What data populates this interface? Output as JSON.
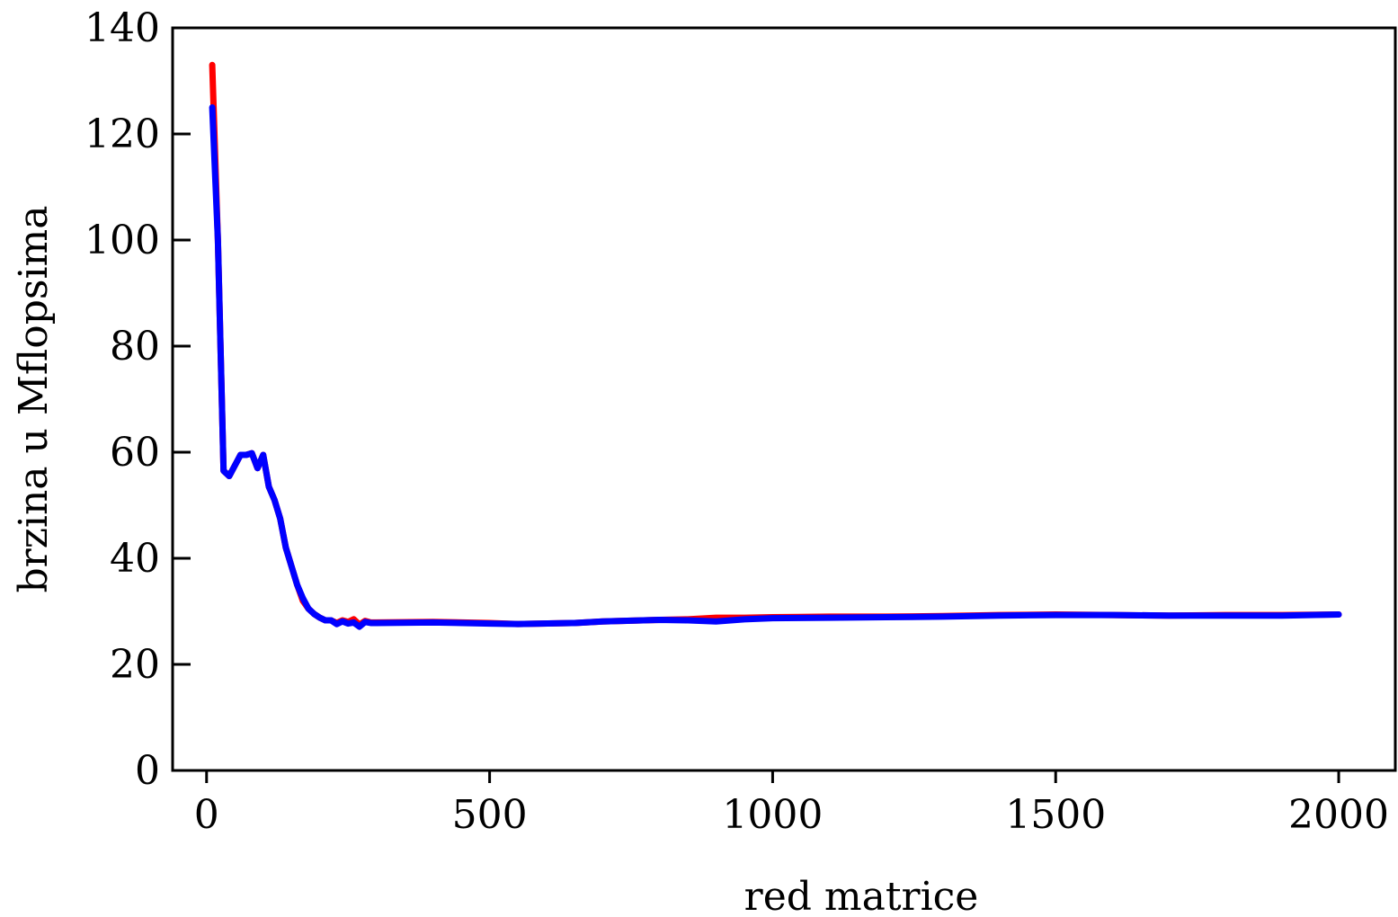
{
  "chart_data": {
    "type": "line",
    "title": "",
    "xlabel": "red matrice",
    "ylabel": "brzina u Mflopsima",
    "xlim": [
      -60,
      2100
    ],
    "ylim": [
      0,
      140
    ],
    "xticks": [
      0,
      500,
      1000,
      1500,
      2000
    ],
    "yticks": [
      0,
      20,
      40,
      60,
      80,
      100,
      120,
      140
    ],
    "xtick_labels": [
      "0",
      "500",
      "1000",
      "1500",
      "2000"
    ],
    "ytick_labels": [
      "0",
      "20",
      "40",
      "60",
      "80",
      "100",
      "120",
      "140"
    ],
    "grid": false,
    "legend": "none",
    "series": [
      {
        "color": "#ff0000",
        "x": [
          10,
          20,
          30,
          40,
          50,
          60,
          70,
          80,
          90,
          100,
          110,
          120,
          130,
          140,
          150,
          160,
          170,
          180,
          190,
          200,
          210,
          220,
          230,
          240,
          250,
          260,
          270,
          280,
          290,
          300,
          400,
          500,
          550,
          650,
          700,
          800,
          850,
          900,
          950,
          1000,
          1100,
          1200,
          1300,
          1400,
          1500,
          1600,
          1700,
          1800,
          1900,
          2000
        ],
        "y": [
          133,
          100,
          56.5,
          55.5,
          57.5,
          59.5,
          59.5,
          59.8,
          57.0,
          59.5,
          53.5,
          51.0,
          47.5,
          42.0,
          38.5,
          35.0,
          32.0,
          30.5,
          29.5,
          28.8,
          28.3,
          28.3,
          27.8,
          28.3,
          28.0,
          28.5,
          27.5,
          28.2,
          27.9,
          27.9,
          28.0,
          27.8,
          27.6,
          27.8,
          28.1,
          28.4,
          28.5,
          28.8,
          28.8,
          28.9,
          29.0,
          29.0,
          29.1,
          29.3,
          29.4,
          29.3,
          29.2,
          29.3,
          29.3,
          29.4
        ]
      },
      {
        "color": "#0000ff",
        "x": [
          10,
          20,
          30,
          40,
          50,
          60,
          70,
          80,
          90,
          100,
          110,
          120,
          130,
          140,
          150,
          160,
          170,
          180,
          190,
          200,
          210,
          220,
          230,
          240,
          250,
          260,
          270,
          280,
          290,
          300,
          400,
          500,
          550,
          650,
          700,
          800,
          850,
          900,
          950,
          1000,
          1100,
          1200,
          1300,
          1400,
          1500,
          1600,
          1700,
          1800,
          1900,
          2000
        ],
        "y": [
          125,
          100,
          56.5,
          55.5,
          57.5,
          59.5,
          59.5,
          59.8,
          57.0,
          59.5,
          53.5,
          51.0,
          47.5,
          42.0,
          38.5,
          35.0,
          32.5,
          30.5,
          29.5,
          28.8,
          28.3,
          28.3,
          27.6,
          28.1,
          27.7,
          27.9,
          27.1,
          28.0,
          27.8,
          27.8,
          27.9,
          27.7,
          27.6,
          27.8,
          28.1,
          28.4,
          28.3,
          28.1,
          28.5,
          28.7,
          28.8,
          28.9,
          29.0,
          29.2,
          29.3,
          29.3,
          29.2,
          29.2,
          29.2,
          29.4
        ]
      }
    ]
  }
}
